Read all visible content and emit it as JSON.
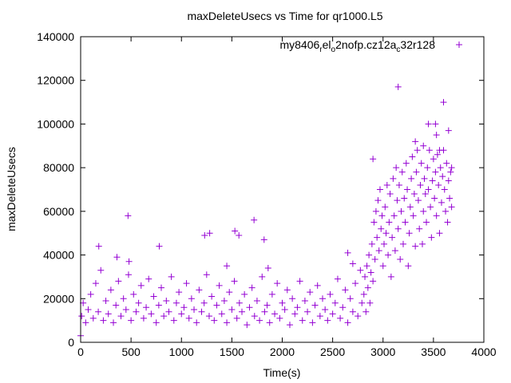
{
  "chart_data": {
    "type": "scatter",
    "title": "maxDeleteUsecs vs Time for qr1000.L5",
    "xlabel": "Time(s)",
    "ylabel": "maxDeleteUsecs",
    "xlim": [
      0,
      4000
    ],
    "ylim": [
      0,
      140000
    ],
    "xticks": [
      "0",
      "500",
      "1000",
      "1500",
      "2000",
      "2500",
      "3000",
      "3500",
      "4000"
    ],
    "yticks": [
      "0",
      "20000",
      "40000",
      "60000",
      "80000",
      "100000",
      "120000",
      "140000"
    ],
    "grid": false,
    "legend_position": "top-right",
    "series": [
      {
        "name": "my8406_rel_o2nofp.cz12a_c32r128",
        "name_parts": [
          {
            "text": "my8406",
            "sub": false
          },
          {
            "text": "r",
            "sub": true
          },
          {
            "text": "el",
            "sub": false
          },
          {
            "text": "o",
            "sub": true
          },
          {
            "text": "2nofp.cz12a",
            "sub": false
          },
          {
            "text": "c",
            "sub": true
          },
          {
            "text": "32r128",
            "sub": false
          }
        ],
        "color": "#9400d3",
        "marker": "plus",
        "points": [
          [
            0,
            3000
          ],
          [
            10,
            12000
          ],
          [
            25,
            18000
          ],
          [
            50,
            9000
          ],
          [
            75,
            15000
          ],
          [
            100,
            22000
          ],
          [
            125,
            11000
          ],
          [
            150,
            27000
          ],
          [
            175,
            14000
          ],
          [
            200,
            33000
          ],
          [
            225,
            10000
          ],
          [
            250,
            19000
          ],
          [
            275,
            13000
          ],
          [
            300,
            24000
          ],
          [
            325,
            9000
          ],
          [
            350,
            17000
          ],
          [
            375,
            28000
          ],
          [
            400,
            12000
          ],
          [
            425,
            20000
          ],
          [
            450,
            15000
          ],
          [
            475,
            31000
          ],
          [
            500,
            10000
          ],
          [
            525,
            22000
          ],
          [
            550,
            14000
          ],
          [
            575,
            18000
          ],
          [
            600,
            26000
          ],
          [
            625,
            11000
          ],
          [
            650,
            16000
          ],
          [
            675,
            29000
          ],
          [
            700,
            13000
          ],
          [
            725,
            21000
          ],
          [
            750,
            9000
          ],
          [
            775,
            17000
          ],
          [
            800,
            25000
          ],
          [
            825,
            12000
          ],
          [
            850,
            19000
          ],
          [
            875,
            14000
          ],
          [
            900,
            30000
          ],
          [
            925,
            10000
          ],
          [
            950,
            18000
          ],
          [
            975,
            23000
          ],
          [
            1000,
            13000
          ],
          [
            1025,
            16000
          ],
          [
            1050,
            27000
          ],
          [
            1075,
            11000
          ],
          [
            1100,
            20000
          ],
          [
            1125,
            15000
          ],
          [
            1150,
            9000
          ],
          [
            1175,
            24000
          ],
          [
            1200,
            14000
          ],
          [
            1225,
            18000
          ],
          [
            1250,
            31000
          ],
          [
            1275,
            12000
          ],
          [
            1300,
            21000
          ],
          [
            1325,
            10000
          ],
          [
            1350,
            17000
          ],
          [
            1375,
            26000
          ],
          [
            1400,
            13000
          ],
          [
            1425,
            19000
          ],
          [
            1450,
            9000
          ],
          [
            1475,
            23000
          ],
          [
            1500,
            15000
          ],
          [
            1525,
            28000
          ],
          [
            1550,
            11000
          ],
          [
            1575,
            18000
          ],
          [
            1600,
            14000
          ],
          [
            1625,
            22000
          ],
          [
            1650,
            8000
          ],
          [
            1675,
            16000
          ],
          [
            1700,
            25000
          ],
          [
            1725,
            12000
          ],
          [
            1750,
            19000
          ],
          [
            1775,
            10000
          ],
          [
            1800,
            30000
          ],
          [
            1825,
            14000
          ],
          [
            1850,
            17000
          ],
          [
            1875,
            9000
          ],
          [
            1900,
            22000
          ],
          [
            1925,
            13000
          ],
          [
            1950,
            27000
          ],
          [
            1975,
            11000
          ],
          [
            2000,
            18000
          ],
          [
            2025,
            15000
          ],
          [
            2050,
            24000
          ],
          [
            2075,
            8000
          ],
          [
            2100,
            20000
          ],
          [
            2125,
            13000
          ],
          [
            2150,
            16000
          ],
          [
            2175,
            28000
          ],
          [
            2200,
            10000
          ],
          [
            2225,
            19000
          ],
          [
            2250,
            14000
          ],
          [
            2275,
            23000
          ],
          [
            2300,
            9000
          ],
          [
            2325,
            17000
          ],
          [
            2350,
            26000
          ],
          [
            2375,
            12000
          ],
          [
            2400,
            20000
          ],
          [
            2425,
            15000
          ],
          [
            2450,
            10000
          ],
          [
            2475,
            22000
          ],
          [
            2500,
            13000
          ],
          [
            2525,
            18000
          ],
          [
            2550,
            29000
          ],
          [
            2575,
            11000
          ],
          [
            2600,
            16000
          ],
          [
            2625,
            24000
          ],
          [
            2650,
            9000
          ],
          [
            2675,
            20000
          ],
          [
            2700,
            14000
          ],
          [
            2725,
            27000
          ],
          [
            2750,
            12000
          ],
          [
            2775,
            33000
          ],
          [
            2790,
            18000
          ],
          [
            2810,
            22000
          ],
          [
            2820,
            30000
          ],
          [
            2830,
            14000
          ],
          [
            2840,
            35000
          ],
          [
            2850,
            25000
          ],
          [
            2860,
            40000
          ],
          [
            2870,
            18000
          ],
          [
            2880,
            32000
          ],
          [
            2890,
            45000
          ],
          [
            2900,
            28000
          ],
          [
            2910,
            55000
          ],
          [
            2920,
            38000
          ],
          [
            2930,
            60000
          ],
          [
            2940,
            48000
          ],
          [
            2950,
            65000
          ],
          [
            2960,
            42000
          ],
          [
            2970,
            70000
          ],
          [
            2980,
            52000
          ],
          [
            2990,
            58000
          ],
          [
            3000,
            35000
          ],
          [
            3010,
            45000
          ],
          [
            3020,
            62000
          ],
          [
            3030,
            50000
          ],
          [
            3040,
            72000
          ],
          [
            3050,
            40000
          ],
          [
            3060,
            55000
          ],
          [
            3070,
            68000
          ],
          [
            3080,
            30000
          ],
          [
            3090,
            48000
          ],
          [
            3100,
            75000
          ],
          [
            3110,
            58000
          ],
          [
            3120,
            42000
          ],
          [
            3130,
            80000
          ],
          [
            3140,
            65000
          ],
          [
            3150,
            52000
          ],
          [
            3160,
            72000
          ],
          [
            3170,
            38000
          ],
          [
            3180,
            60000
          ],
          [
            3190,
            78000
          ],
          [
            3200,
            45000
          ],
          [
            3210,
            66000
          ],
          [
            3220,
            55000
          ],
          [
            3230,
            82000
          ],
          [
            3240,
            70000
          ],
          [
            3250,
            35000
          ],
          [
            3260,
            50000
          ],
          [
            3270,
            62000
          ],
          [
            3280,
            75000
          ],
          [
            3290,
            85000
          ],
          [
            3300,
            58000
          ],
          [
            3310,
            68000
          ],
          [
            3320,
            44000
          ],
          [
            3330,
            78000
          ],
          [
            3340,
            88000
          ],
          [
            3350,
            65000
          ],
          [
            3360,
            52000
          ],
          [
            3370,
            72000
          ],
          [
            3380,
            82000
          ],
          [
            3390,
            45000
          ],
          [
            3400,
            60000
          ],
          [
            3410,
            75000
          ],
          [
            3420,
            68000
          ],
          [
            3430,
            55000
          ],
          [
            3440,
            80000
          ],
          [
            3450,
            70000
          ],
          [
            3460,
            88000
          ],
          [
            3470,
            62000
          ],
          [
            3480,
            48000
          ],
          [
            3490,
            74000
          ],
          [
            3500,
            84000
          ],
          [
            3510,
            66000
          ],
          [
            3520,
            78000
          ],
          [
            3530,
            58000
          ],
          [
            3540,
            86000
          ],
          [
            3550,
            72000
          ],
          [
            3560,
            50000
          ],
          [
            3570,
            80000
          ],
          [
            3580,
            64000
          ],
          [
            3590,
            76000
          ],
          [
            3600,
            88000
          ],
          [
            3610,
            70000
          ],
          [
            3620,
            60000
          ],
          [
            3630,
            82000
          ],
          [
            3640,
            55000
          ],
          [
            3650,
            74000
          ],
          [
            3660,
            66000
          ],
          [
            3670,
            78000
          ],
          [
            3680,
            62000
          ],
          [
            470,
            58000
          ],
          [
            1720,
            56000
          ],
          [
            3150,
            117000
          ],
          [
            3600,
            110000
          ],
          [
            3450,
            100000
          ],
          [
            3520,
            100000
          ],
          [
            3530,
            95000
          ],
          [
            3650,
            97000
          ],
          [
            1530,
            51000
          ],
          [
            1570,
            49000
          ],
          [
            1820,
            47000
          ],
          [
            1230,
            49000
          ],
          [
            1280,
            50000
          ],
          [
            780,
            44000
          ],
          [
            180,
            44000
          ],
          [
            360,
            39000
          ],
          [
            480,
            37000
          ],
          [
            1450,
            35000
          ],
          [
            1860,
            34000
          ],
          [
            2700,
            36000
          ],
          [
            2650,
            41000
          ],
          [
            2900,
            84000
          ],
          [
            3320,
            92000
          ],
          [
            3400,
            90000
          ],
          [
            3560,
            88000
          ],
          [
            3680,
            80000
          ]
        ]
      }
    ]
  }
}
